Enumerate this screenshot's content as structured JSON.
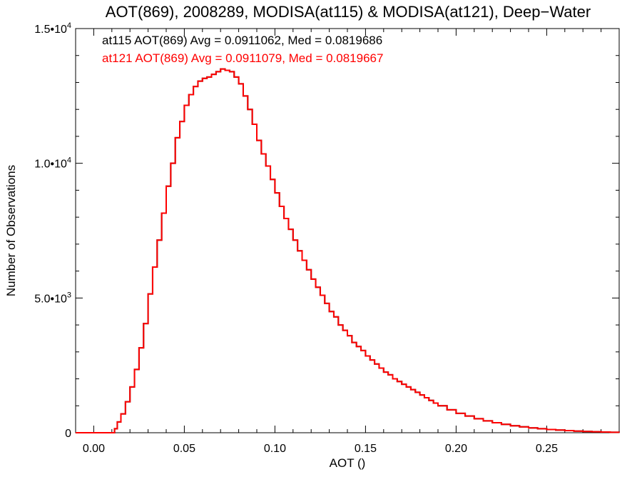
{
  "chart_data": {
    "type": "line",
    "title": "AOT(869), 2008289, MODISA(at115) & MODISA(at121), Deep−Water",
    "xlabel": "AOT ()",
    "ylabel": "Number of Observations",
    "xlim": [
      -0.01,
      0.29
    ],
    "ylim": [
      0,
      15000
    ],
    "grid": false,
    "x_ticks": [
      {
        "value": 0.0,
        "label": "0.00"
      },
      {
        "value": 0.05,
        "label": "0.05"
      },
      {
        "value": 0.1,
        "label": "0.10"
      },
      {
        "value": 0.15,
        "label": "0.15"
      },
      {
        "value": 0.2,
        "label": "0.20"
      },
      {
        "value": 0.25,
        "label": "0.25"
      }
    ],
    "y_ticks": [
      {
        "value": 0,
        "mantissa": "0",
        "exponent": ""
      },
      {
        "value": 5000,
        "mantissa": "5.0•10",
        "exponent": "3"
      },
      {
        "value": 10000,
        "mantissa": "1.0•10",
        "exponent": "4"
      },
      {
        "value": 15000,
        "mantissa": "1.5•10",
        "exponent": "4"
      }
    ],
    "annotations": [
      {
        "text": "at115 AOT(869) Avg = 0.0911062, Med = 0.0819686",
        "color": "#000000"
      },
      {
        "text": "at121 AOT(869) Avg = 0.0911079, Med = 0.0819667",
        "color": "#ff0000"
      }
    ],
    "series": [
      {
        "name": "at115",
        "color": "#000000",
        "x": [
          -0.01,
          0.0,
          0.005,
          0.01,
          0.0115,
          0.013,
          0.015,
          0.0175,
          0.02,
          0.0225,
          0.025,
          0.0275,
          0.03,
          0.0325,
          0.035,
          0.0375,
          0.04,
          0.0425,
          0.045,
          0.0475,
          0.05,
          0.0525,
          0.055,
          0.0575,
          0.06,
          0.0625,
          0.065,
          0.0675,
          0.07,
          0.0725,
          0.075,
          0.0775,
          0.08,
          0.0825,
          0.085,
          0.0875,
          0.09,
          0.0925,
          0.095,
          0.0975,
          0.1,
          0.1025,
          0.105,
          0.1075,
          0.11,
          0.1125,
          0.115,
          0.1175,
          0.12,
          0.1225,
          0.125,
          0.1275,
          0.13,
          0.1325,
          0.135,
          0.1375,
          0.14,
          0.1425,
          0.145,
          0.1475,
          0.15,
          0.1525,
          0.155,
          0.1575,
          0.16,
          0.1625,
          0.165,
          0.1675,
          0.17,
          0.1725,
          0.175,
          0.1775,
          0.18,
          0.1825,
          0.185,
          0.1875,
          0.19,
          0.195,
          0.2,
          0.205,
          0.21,
          0.215,
          0.22,
          0.225,
          0.23,
          0.235,
          0.24,
          0.245,
          0.25,
          0.255,
          0.26,
          0.265,
          0.27,
          0.275,
          0.28,
          0.285,
          0.29
        ],
        "values": [
          0,
          0,
          0,
          0,
          150,
          400,
          700,
          1150,
          1700,
          2350,
          3150,
          4050,
          5150,
          6150,
          7150,
          8150,
          9150,
          10000,
          10950,
          11550,
          12150,
          12550,
          12850,
          13050,
          13150,
          13200,
          13300,
          13400,
          13500,
          13450,
          13400,
          13200,
          12950,
          12500,
          12000,
          11450,
          10850,
          10350,
          9900,
          9400,
          8900,
          8400,
          7950,
          7550,
          7150,
          6750,
          6400,
          6050,
          5700,
          5400,
          5100,
          4800,
          4500,
          4300,
          4000,
          3800,
          3600,
          3350,
          3200,
          3050,
          2850,
          2700,
          2550,
          2400,
          2250,
          2150,
          2000,
          1900,
          1800,
          1700,
          1600,
          1500,
          1400,
          1300,
          1200,
          1100,
          1000,
          850,
          720,
          620,
          520,
          440,
          370,
          310,
          260,
          220,
          180,
          150,
          120,
          100,
          80,
          60,
          45,
          35,
          25,
          15,
          10
        ]
      },
      {
        "name": "at121",
        "color": "#ff0000",
        "x": [
          -0.01,
          0.0,
          0.005,
          0.01,
          0.0115,
          0.013,
          0.015,
          0.0175,
          0.02,
          0.0225,
          0.025,
          0.0275,
          0.03,
          0.0325,
          0.035,
          0.0375,
          0.04,
          0.0425,
          0.045,
          0.0475,
          0.05,
          0.0525,
          0.055,
          0.0575,
          0.06,
          0.0625,
          0.065,
          0.0675,
          0.07,
          0.0725,
          0.075,
          0.0775,
          0.08,
          0.0825,
          0.085,
          0.0875,
          0.09,
          0.0925,
          0.095,
          0.0975,
          0.1,
          0.1025,
          0.105,
          0.1075,
          0.11,
          0.1125,
          0.115,
          0.1175,
          0.12,
          0.1225,
          0.125,
          0.1275,
          0.13,
          0.1325,
          0.135,
          0.1375,
          0.14,
          0.1425,
          0.145,
          0.1475,
          0.15,
          0.1525,
          0.155,
          0.1575,
          0.16,
          0.1625,
          0.165,
          0.1675,
          0.17,
          0.1725,
          0.175,
          0.1775,
          0.18,
          0.1825,
          0.185,
          0.1875,
          0.19,
          0.195,
          0.2,
          0.205,
          0.21,
          0.215,
          0.22,
          0.225,
          0.23,
          0.235,
          0.24,
          0.245,
          0.25,
          0.255,
          0.26,
          0.265,
          0.27,
          0.275,
          0.28,
          0.285,
          0.29
        ],
        "values": [
          0,
          0,
          0,
          0,
          150,
          400,
          700,
          1150,
          1700,
          2350,
          3150,
          4050,
          5150,
          6150,
          7150,
          8150,
          9150,
          10000,
          10950,
          11550,
          12150,
          12550,
          12850,
          13050,
          13150,
          13200,
          13300,
          13400,
          13500,
          13450,
          13400,
          13200,
          12950,
          12500,
          12000,
          11450,
          10850,
          10350,
          9900,
          9400,
          8900,
          8400,
          7950,
          7550,
          7150,
          6750,
          6400,
          6050,
          5700,
          5400,
          5100,
          4800,
          4500,
          4300,
          4000,
          3800,
          3600,
          3350,
          3200,
          3050,
          2850,
          2700,
          2550,
          2400,
          2250,
          2150,
          2000,
          1900,
          1800,
          1700,
          1600,
          1500,
          1400,
          1300,
          1200,
          1100,
          1000,
          850,
          720,
          620,
          520,
          440,
          370,
          310,
          260,
          220,
          180,
          150,
          120,
          100,
          80,
          60,
          45,
          35,
          25,
          15,
          10
        ]
      }
    ]
  }
}
